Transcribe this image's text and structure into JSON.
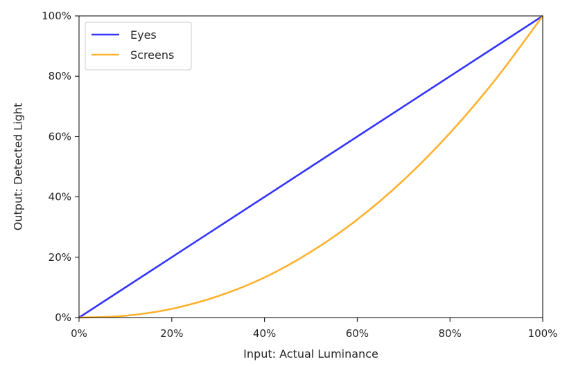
{
  "chart_data": {
    "type": "line",
    "xlabel": "Input: Actual Luminance",
    "ylabel": "Output: Detected Light",
    "xlim": [
      0,
      100
    ],
    "ylim": [
      0,
      100
    ],
    "x_ticks": [
      "0%",
      "20%",
      "40%",
      "60%",
      "80%",
      "100%"
    ],
    "y_ticks": [
      "0%",
      "20%",
      "40%",
      "60%",
      "80%",
      "100%"
    ],
    "grid": false,
    "legend_position": "top-left",
    "x": [
      0,
      10,
      20,
      30,
      40,
      50,
      60,
      70,
      80,
      90,
      100
    ],
    "series": [
      {
        "name": "Eyes",
        "color": "#3333ff",
        "values": [
          0,
          10,
          20,
          30,
          40,
          50,
          60,
          70,
          80,
          90,
          100
        ]
      },
      {
        "name": "Screens",
        "color": "#ffb12d",
        "values": [
          0,
          0.6,
          2.9,
          7.1,
          13.3,
          21.8,
          32.5,
          45.6,
          61.2,
          79.3,
          100
        ]
      }
    ]
  }
}
